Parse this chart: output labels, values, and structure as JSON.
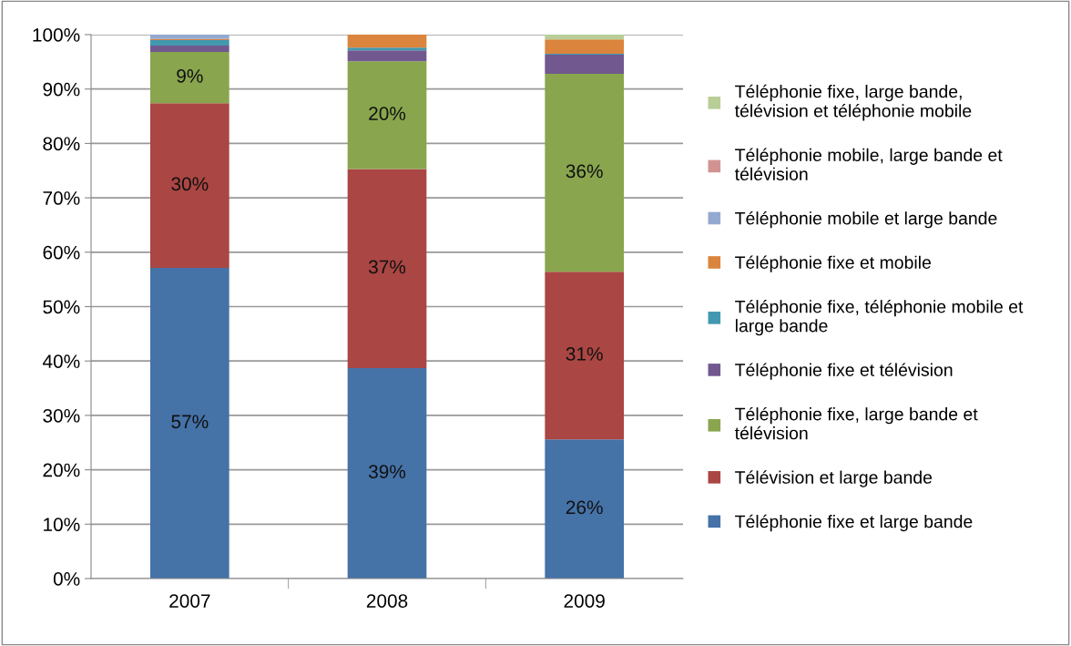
{
  "chart_data": {
    "type": "bar",
    "stacked": true,
    "categories": [
      "2007",
      "2008",
      "2009"
    ],
    "series": [
      {
        "name": "Téléphonie fixe et large bande",
        "color": "#4572a7",
        "values": [
          57.1,
          38.7,
          25.6
        ],
        "value_labels": [
          "57%",
          "39%",
          "26%"
        ]
      },
      {
        "name": "Télévision et large bande",
        "color": "#aa4643",
        "values": [
          30.3,
          36.6,
          30.8
        ],
        "value_labels": [
          "30%",
          "37%",
          "31%"
        ]
      },
      {
        "name": "Téléphonie fixe, large bande et\ntélévision",
        "color": "#89a54e",
        "values": [
          9.4,
          19.8,
          36.4
        ],
        "value_labels": [
          "9%",
          "20%",
          "36%"
        ]
      },
      {
        "name": "Téléphonie fixe et télévision",
        "color": "#71588f",
        "values": [
          1.2,
          2.0,
          3.5
        ]
      },
      {
        "name": "Téléphonie fixe, téléphonie mobile et\nlarge bande",
        "color": "#4198af",
        "values": [
          1.0,
          0.5,
          0.2
        ]
      },
      {
        "name": "Téléphonie fixe et mobile",
        "color": "#db843d",
        "values": [
          0.2,
          2.4,
          2.6
        ]
      },
      {
        "name": "Téléphonie mobile et large bande",
        "color": "#93a9cf",
        "values": [
          0.8,
          0,
          0
        ]
      },
      {
        "name": "Téléphonie mobile, large bande et\ntélévision",
        "color": "#d19392",
        "values": [
          0,
          0,
          0
        ]
      },
      {
        "name": "Téléphonie fixe, large bande,\ntélévision et téléphonie mobile",
        "color": "#b9cd96",
        "values": [
          0,
          0,
          0.9
        ]
      }
    ],
    "ylim": [
      0,
      100
    ],
    "yticks": [
      {
        "value": 0,
        "label": "0%"
      },
      {
        "value": 10,
        "label": "10%"
      },
      {
        "value": 20,
        "label": "20%"
      },
      {
        "value": 30,
        "label": "30%"
      },
      {
        "value": 40,
        "label": "40%"
      },
      {
        "value": 50,
        "label": "50%"
      },
      {
        "value": 60,
        "label": "60%"
      },
      {
        "value": 70,
        "label": "70%"
      },
      {
        "value": 80,
        "label": "80%"
      },
      {
        "value": 90,
        "label": "90%"
      },
      {
        "value": 100,
        "label": "100%"
      }
    ],
    "grid": "y",
    "legend": "right"
  }
}
